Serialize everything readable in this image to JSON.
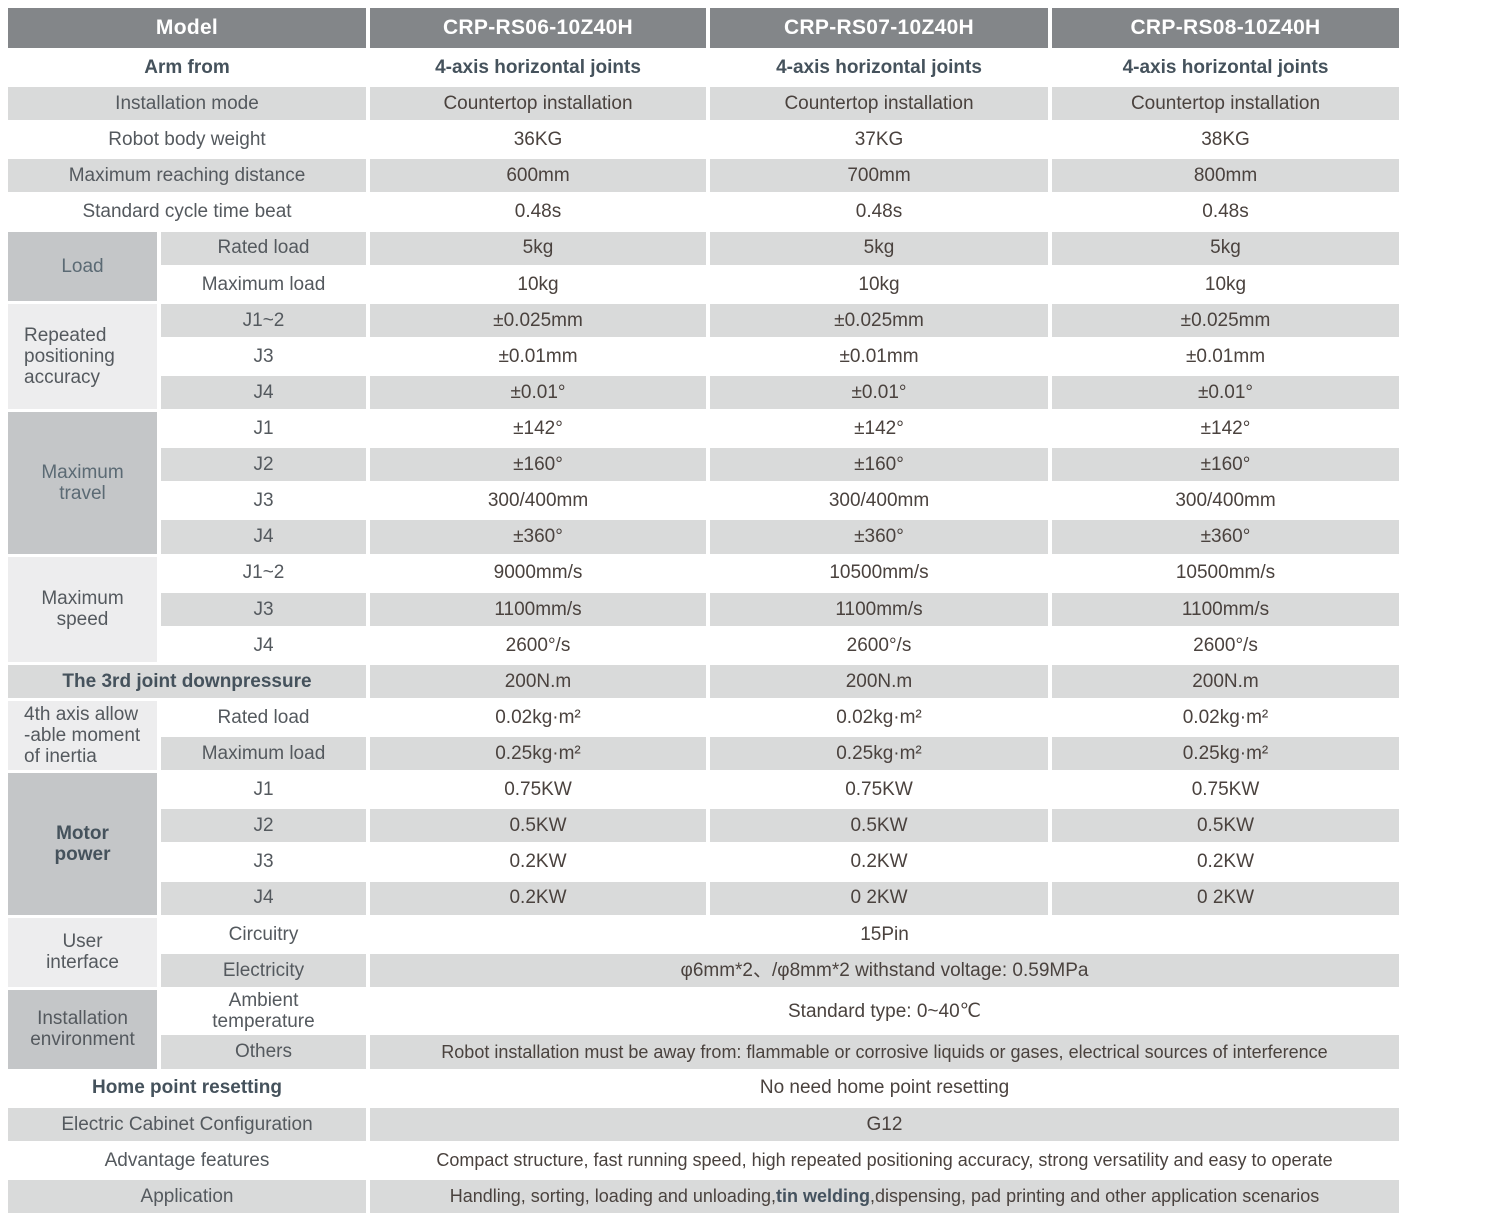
{
  "colors": {
    "header_bg": "#838689",
    "row_gray": "#d9dada",
    "group_medium": "#c4c6c8",
    "group_light": "#ededee",
    "text_label": "#54595e",
    "text_group_label": "#5b6a74",
    "text_bold_slate": "#45525c",
    "text_value": "#4a423e",
    "header_text": "#ffffff"
  },
  "header": {
    "label": "Model",
    "models": [
      "CRP-RS06-10Z40H",
      "CRP-RS07-10Z40H",
      "CRP-RS08-10Z40H"
    ]
  },
  "rows": {
    "arm_from": {
      "label": "Arm from",
      "v": [
        "4-axis horizontal joints",
        "4-axis horizontal joints",
        "4-axis horizontal joints"
      ]
    },
    "installation_mode": {
      "label": "Installation mode",
      "v": [
        "Countertop installation",
        "Countertop installation",
        "Countertop installation"
      ]
    },
    "body_weight": {
      "label": "Robot body weight",
      "v": [
        "36KG",
        "37KG",
        "38KG"
      ]
    },
    "reach": {
      "label": "Maximum reaching distance",
      "v": [
        "600mm",
        "700mm",
        "800mm"
      ]
    },
    "cycle": {
      "label": "Standard cycle time beat",
      "v": [
        "0.48s",
        "0.48s",
        "0.48s"
      ]
    }
  },
  "groups": {
    "load": {
      "label": "Load",
      "rows": [
        {
          "label": "Rated load",
          "v": [
            "5kg",
            "5kg",
            "5kg"
          ]
        },
        {
          "label": "Maximum load",
          "v": [
            "10kg",
            "10kg",
            "10kg"
          ]
        }
      ]
    },
    "accuracy": {
      "label_lines": [
        "Repeated",
        "positioning",
        "accuracy"
      ],
      "rows": [
        {
          "label": "J1~2",
          "v": [
            "±0.025mm",
            "±0.025mm",
            "±0.025mm"
          ]
        },
        {
          "label": "J3",
          "v": [
            "±0.01mm",
            "±0.01mm",
            "±0.01mm"
          ]
        },
        {
          "label": "J4",
          "v": [
            "±0.01°",
            "±0.01°",
            "±0.01°"
          ]
        }
      ]
    },
    "travel": {
      "label_lines": [
        "Maximum",
        "travel"
      ],
      "rows": [
        {
          "label": "J1",
          "v": [
            "±142°",
            "±142°",
            "±142°"
          ]
        },
        {
          "label": "J2",
          "v": [
            "±160°",
            "±160°",
            "±160°"
          ]
        },
        {
          "label": "J3",
          "v": [
            "300/400mm",
            "300/400mm",
            "300/400mm"
          ]
        },
        {
          "label": "J4",
          "v": [
            "±360°",
            "±360°",
            "±360°"
          ]
        }
      ]
    },
    "speed": {
      "label_lines": [
        "Maximum",
        "speed"
      ],
      "rows": [
        {
          "label": "J1~2",
          "v": [
            "9000mm/s",
            "10500mm/s",
            "10500mm/s"
          ]
        },
        {
          "label": "J3",
          "v": [
            "1100mm/s",
            "1100mm/s",
            "1100mm/s"
          ]
        },
        {
          "label": "J4",
          "v": [
            "2600°/s",
            "2600°/s",
            "2600°/s"
          ]
        }
      ]
    },
    "downpressure": {
      "label": "The 3rd joint downpressure",
      "v": [
        "200N.m",
        "200N.m",
        "200N.m"
      ]
    },
    "inertia": {
      "label_lines": [
        "4th axis allow",
        "-able moment",
        "of inertia"
      ],
      "rows": [
        {
          "label": "Rated load",
          "v": [
            "0.02kg·m²",
            "0.02kg·m²",
            "0.02kg·m²"
          ]
        },
        {
          "label": "Maximum load",
          "v": [
            "0.25kg·m²",
            "0.25kg·m²",
            "0.25kg·m²"
          ]
        }
      ]
    },
    "motor": {
      "label_lines": [
        "Motor",
        "power"
      ],
      "rows": [
        {
          "label": "J1",
          "v": [
            "0.75KW",
            "0.75KW",
            "0.75KW"
          ]
        },
        {
          "label": "J2",
          "v": [
            "0.5KW",
            "0.5KW",
            "0.5KW"
          ]
        },
        {
          "label": "J3",
          "v": [
            "0.2KW",
            "0.2KW",
            "0.2KW"
          ]
        },
        {
          "label": "J4",
          "v": [
            "0.2KW",
            "0 2KW",
            "0 2KW"
          ]
        }
      ]
    },
    "user": {
      "label_lines": [
        "User",
        "interface"
      ],
      "rows": [
        {
          "label": "Circuitry",
          "span": "15Pin"
        },
        {
          "label": "Electricity",
          "span": "φ6mm*2、/φ8mm*2  withstand voltage: 0.59MPa"
        }
      ]
    },
    "env": {
      "label_lines": [
        "Installation",
        "environment"
      ],
      "rows": [
        {
          "label_lines": [
            "Ambient",
            "temperature"
          ],
          "span": "Standard type:  0~40℃"
        },
        {
          "label": "Others",
          "span": "Robot installation must be away from: flammable or corrosive liquids or gases, electrical sources of interference"
        }
      ]
    }
  },
  "bottom": {
    "home": {
      "label": "Home point resetting",
      "span": "No need home point resetting"
    },
    "cabinet": {
      "label": "Electric Cabinet Configuration",
      "span": "G12"
    },
    "advantage": {
      "label": "Advantage features",
      "span": "Compact structure, fast running speed, high repeated positioning accuracy, strong versatility and easy to operate"
    },
    "application": {
      "label": "Application",
      "pre": "Handling, sorting, loading and unloading,",
      "bold": "tin welding",
      "post": ",dispensing, pad printing and other application scenarios"
    }
  }
}
